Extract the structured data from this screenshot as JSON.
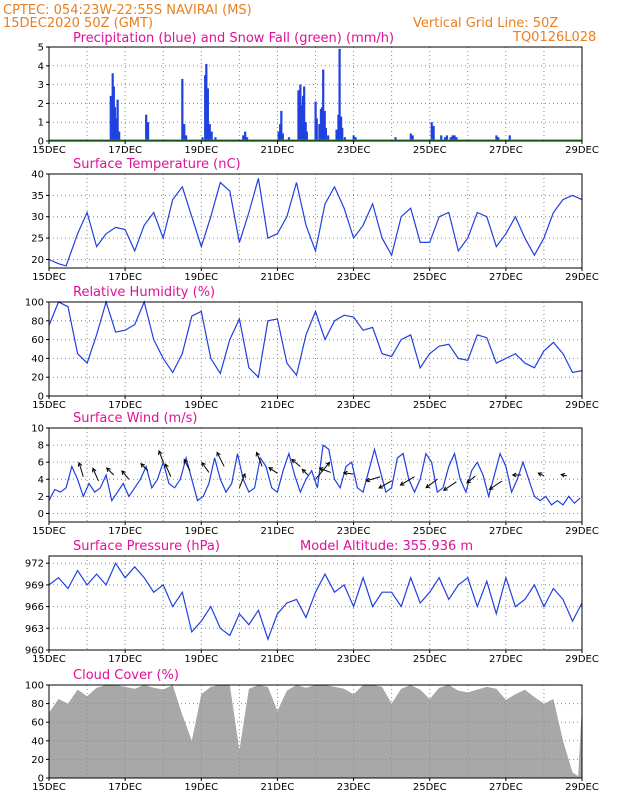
{
  "header": {
    "left_line1": "CPTEC:   054:23W-22:55S   NAVIRAI (MS)",
    "left_line2": "15DEC2020 50Z (GMT)",
    "right_line1": "Vertical Grid Line: 50Z",
    "right_line2": "TQ0126L028"
  },
  "x_ticks": [
    "15DEC",
    "17DEC",
    "19DEC",
    "21DEC",
    "23DEC",
    "25DEC",
    "27DEC",
    "29DEC"
  ],
  "colors": {
    "series": "#2040e0",
    "snow": "#20a020",
    "cloud": "#a8a8a8",
    "title": "#e0109a",
    "header": "#e88020"
  },
  "chart_data": [
    {
      "type": "bar",
      "title": "Precipitation (blue) and Snow Fall (green) (mm/h)",
      "ylim": [
        0,
        5
      ],
      "yticks": [
        0,
        1,
        2,
        3,
        4,
        5
      ],
      "x_unit": "days since 15DEC 00Z",
      "series": [
        {
          "name": "Precipitation",
          "values": [
            [
              1.62,
              2.4
            ],
            [
              1.67,
              3.6
            ],
            [
              1.7,
              2.9
            ],
            [
              1.73,
              1.8
            ],
            [
              1.77,
              1.2
            ],
            [
              1.8,
              2.2
            ],
            [
              1.84,
              0.5
            ],
            [
              2.55,
              1.4
            ],
            [
              2.6,
              1.0
            ],
            [
              3.5,
              3.3
            ],
            [
              3.55,
              0.9
            ],
            [
              3.6,
              0.3
            ],
            [
              4.03,
              0.2
            ],
            [
              4.1,
              3.5
            ],
            [
              4.13,
              4.1
            ],
            [
              4.17,
              2.8
            ],
            [
              4.22,
              0.9
            ],
            [
              4.27,
              0.5
            ],
            [
              4.37,
              0.2
            ],
            [
              5.1,
              0.3
            ],
            [
              5.15,
              0.5
            ],
            [
              5.2,
              0.2
            ],
            [
              6.03,
              0.5
            ],
            [
              6.07,
              0.9
            ],
            [
              6.1,
              1.6
            ],
            [
              6.14,
              0.4
            ],
            [
              6.3,
              0.2
            ],
            [
              6.55,
              2.7
            ],
            [
              6.6,
              3.0
            ],
            [
              6.63,
              1.9
            ],
            [
              6.67,
              2.4
            ],
            [
              6.7,
              2.9
            ],
            [
              6.74,
              1.0
            ],
            [
              6.77,
              0.5
            ],
            [
              7.0,
              2.1
            ],
            [
              7.03,
              1.2
            ],
            [
              7.1,
              0.9
            ],
            [
              7.14,
              1.7
            ],
            [
              7.17,
              1.8
            ],
            [
              7.2,
              3.8
            ],
            [
              7.24,
              1.6
            ],
            [
              7.27,
              0.7
            ],
            [
              7.33,
              0.3
            ],
            [
              7.55,
              0.6
            ],
            [
              7.6,
              1.4
            ],
            [
              7.63,
              4.9
            ],
            [
              7.67,
              1.3
            ],
            [
              7.7,
              0.7
            ],
            [
              7.77,
              0.2
            ],
            [
              8.0,
              0.3
            ],
            [
              8.05,
              0.2
            ],
            [
              9.1,
              0.2
            ],
            [
              9.5,
              0.4
            ],
            [
              9.55,
              0.3
            ],
            [
              10.05,
              1.0
            ],
            [
              10.1,
              0.8
            ],
            [
              10.3,
              0.3
            ],
            [
              10.4,
              0.2
            ],
            [
              10.45,
              0.3
            ],
            [
              10.55,
              0.2
            ],
            [
              10.6,
              0.3
            ],
            [
              10.65,
              0.3
            ],
            [
              10.7,
              0.2
            ],
            [
              11.75,
              0.3
            ],
            [
              11.8,
              0.2
            ],
            [
              12.1,
              0.3
            ]
          ]
        },
        {
          "name": "Snow Fall",
          "values": []
        }
      ]
    },
    {
      "type": "line",
      "title": "Surface Temperature (nC)",
      "ylim": [
        18,
        40
      ],
      "yticks": [
        20,
        25,
        30,
        35,
        40
      ],
      "x": [
        0,
        0.25,
        0.45,
        0.75,
        1.0,
        1.25,
        1.5,
        1.75,
        2.0,
        2.25,
        2.5,
        2.75,
        3.0,
        3.25,
        3.5,
        3.75,
        4.0,
        4.25,
        4.5,
        4.75,
        5.0,
        5.25,
        5.5,
        5.75,
        6.0,
        6.25,
        6.5,
        6.75,
        7.0,
        7.25,
        7.5,
        7.75,
        8.0,
        8.25,
        8.5,
        8.75,
        9.0,
        9.25,
        9.5,
        9.75,
        10.0,
        10.25,
        10.5,
        10.75,
        11.0,
        11.25,
        11.5,
        11.75,
        12.0,
        12.25,
        12.5,
        12.75,
        13.0,
        13.25,
        13.5,
        13.75,
        14.0
      ],
      "values": [
        20,
        19,
        18.5,
        26,
        31,
        23,
        26,
        27.5,
        27,
        22,
        28,
        31,
        25,
        34,
        37,
        30,
        23,
        30,
        38,
        36,
        24,
        31,
        39,
        25,
        26,
        30,
        38,
        28,
        22,
        33,
        37,
        32,
        25,
        28,
        33,
        25,
        21,
        30,
        32,
        24,
        24,
        30,
        31,
        22,
        25,
        31,
        30,
        23,
        26,
        30,
        25,
        21,
        25,
        31,
        34,
        35,
        34
      ]
    },
    {
      "type": "line",
      "title": "Relative Humidity (%)",
      "ylim": [
        0,
        100
      ],
      "yticks": [
        0,
        20,
        40,
        60,
        80,
        100
      ],
      "x": [
        0,
        0.25,
        0.5,
        0.75,
        1.0,
        1.25,
        1.5,
        1.75,
        2.0,
        2.25,
        2.5,
        2.75,
        3.0,
        3.25,
        3.5,
        3.75,
        4.0,
        4.25,
        4.5,
        4.75,
        5.0,
        5.25,
        5.5,
        5.75,
        6.0,
        6.25,
        6.5,
        6.75,
        7.0,
        7.25,
        7.5,
        7.75,
        8.0,
        8.25,
        8.5,
        8.75,
        9.0,
        9.25,
        9.5,
        9.75,
        10.0,
        10.25,
        10.5,
        10.75,
        11.0,
        11.25,
        11.5,
        11.75,
        12.0,
        12.25,
        12.5,
        12.75,
        13.0,
        13.25,
        13.5,
        13.75,
        14.0
      ],
      "values": [
        75,
        100,
        95,
        45,
        35,
        65,
        100,
        68,
        70,
        76,
        100,
        60,
        40,
        25,
        45,
        85,
        90,
        40,
        24,
        60,
        82,
        30,
        20,
        80,
        82,
        35,
        22,
        65,
        90,
        60,
        80,
        86,
        84,
        70,
        73,
        45,
        42,
        60,
        65,
        30,
        45,
        53,
        55,
        40,
        38,
        65,
        62,
        35,
        40,
        45,
        35,
        30,
        48,
        57,
        45,
        25,
        27
      ]
    },
    {
      "type": "line",
      "title": "Surface Wind (m/s)",
      "ylim": [
        -1,
        10
      ],
      "yticks": [
        0,
        2,
        4,
        6,
        8,
        10
      ],
      "x": [
        0,
        0.15,
        0.3,
        0.45,
        0.6,
        0.75,
        0.9,
        1.05,
        1.2,
        1.35,
        1.5,
        1.65,
        1.8,
        1.95,
        2.1,
        2.25,
        2.4,
        2.55,
        2.7,
        2.85,
        3.0,
        3.15,
        3.3,
        3.45,
        3.6,
        3.75,
        3.9,
        4.05,
        4.2,
        4.35,
        4.5,
        4.65,
        4.8,
        4.95,
        5.1,
        5.25,
        5.4,
        5.55,
        5.7,
        5.85,
        6.0,
        6.15,
        6.3,
        6.45,
        6.6,
        6.75,
        6.9,
        7.05,
        7.2,
        7.35,
        7.5,
        7.65,
        7.8,
        7.95,
        8.1,
        8.25,
        8.4,
        8.55,
        8.7,
        8.85,
        9.0,
        9.15,
        9.3,
        9.45,
        9.6,
        9.75,
        9.9,
        10.05,
        10.2,
        10.35,
        10.5,
        10.65,
        10.8,
        10.95,
        11.1,
        11.25,
        11.4,
        11.55,
        11.7,
        11.85,
        12.0,
        12.15,
        12.3,
        12.45,
        12.6,
        12.75,
        12.9,
        13.05,
        13.2,
        13.35,
        13.5,
        13.65,
        13.8,
        13.95
      ],
      "values": [
        1.5,
        2.8,
        2.5,
        3.0,
        5.5,
        4.0,
        2.0,
        3.5,
        2.5,
        3.0,
        4.5,
        1.5,
        2.5,
        3.5,
        2.0,
        3.0,
        4.0,
        5.5,
        3.0,
        4.0,
        6.0,
        3.5,
        3.0,
        4.0,
        6.5,
        4.0,
        1.5,
        2.0,
        3.5,
        6.5,
        4.0,
        2.5,
        3.5,
        7.0,
        4.0,
        2.5,
        3.0,
        6.5,
        5.5,
        3.0,
        2.5,
        5.0,
        7.0,
        4.5,
        2.5,
        4.0,
        5.0,
        3.0,
        8.0,
        7.5,
        4.0,
        3.0,
        5.5,
        6.0,
        3.0,
        2.5,
        5.0,
        7.5,
        5.0,
        2.5,
        3.0,
        6.5,
        7.0,
        4.0,
        2.5,
        4.0,
        7.0,
        6.0,
        2.5,
        3.0,
        5.5,
        7.0,
        4.0,
        2.5,
        5.0,
        6.0,
        4.5,
        2.0,
        4.5,
        7.0,
        5.5,
        2.5,
        4.0,
        6.0,
        4.0,
        2.0,
        1.5,
        2.0,
        1.0,
        1.5,
        1.0,
        2.0,
        1.2,
        1.8
      ],
      "arrows": [
        {
          "x": 0.9,
          "y": 4.3,
          "dx": -0.3,
          "dy": 1.0
        },
        {
          "x": 1.3,
          "y": 3.8,
          "dx": -0.4,
          "dy": 0.9
        },
        {
          "x": 1.7,
          "y": 4.5,
          "dx": -0.5,
          "dy": 0.5
        },
        {
          "x": 2.1,
          "y": 4.0,
          "dx": -0.5,
          "dy": 0.6
        },
        {
          "x": 2.6,
          "y": 5.0,
          "dx": -0.5,
          "dy": 0.5
        },
        {
          "x": 3.0,
          "y": 6.0,
          "dx": -0.3,
          "dy": 0.8
        },
        {
          "x": 3.2,
          "y": 4.3,
          "dx": -0.4,
          "dy": 0.9
        },
        {
          "x": 3.7,
          "y": 5.0,
          "dx": -0.4,
          "dy": 0.8
        },
        {
          "x": 4.2,
          "y": 4.8,
          "dx": -0.5,
          "dy": 0.7
        },
        {
          "x": 4.6,
          "y": 5.5,
          "dx": -0.5,
          "dy": 1.0
        },
        {
          "x": 5.0,
          "y": 3.0,
          "dx": 0.4,
          "dy": 1.0
        },
        {
          "x": 5.6,
          "y": 5.5,
          "dx": -0.4,
          "dy": 1.0
        },
        {
          "x": 6.0,
          "y": 4.7,
          "dx": -0.6,
          "dy": 0.4
        },
        {
          "x": 6.6,
          "y": 5.5,
          "dx": -0.6,
          "dy": 0.5
        },
        {
          "x": 6.8,
          "y": 4.5,
          "dx": -0.4,
          "dy": 0.4
        },
        {
          "x": 7.0,
          "y": 4.0,
          "dx": 1.0,
          "dy": 1.2
        },
        {
          "x": 7.4,
          "y": 4.8,
          "dx": -0.8,
          "dy": 0.3
        },
        {
          "x": 8.0,
          "y": 4.6,
          "dx": -0.7,
          "dy": 0.1
        },
        {
          "x": 8.7,
          "y": 4.3,
          "dx": -1.0,
          "dy": -0.3
        },
        {
          "x": 9.0,
          "y": 3.8,
          "dx": -0.9,
          "dy": -0.5
        },
        {
          "x": 9.6,
          "y": 4.3,
          "dx": -1.0,
          "dy": -0.6
        },
        {
          "x": 10.2,
          "y": 4.0,
          "dx": -0.8,
          "dy": -0.6
        },
        {
          "x": 10.7,
          "y": 3.7,
          "dx": -0.9,
          "dy": -0.6
        },
        {
          "x": 11.2,
          "y": 4.4,
          "dx": -0.6,
          "dy": -0.5
        },
        {
          "x": 11.9,
          "y": 3.8,
          "dx": -0.9,
          "dy": -0.6
        },
        {
          "x": 12.4,
          "y": 4.5,
          "dx": -0.6,
          "dy": 0.0
        },
        {
          "x": 13.0,
          "y": 4.4,
          "dx": -0.4,
          "dy": 0.2
        },
        {
          "x": 13.6,
          "y": 4.4,
          "dx": -0.4,
          "dy": 0.1
        }
      ]
    },
    {
      "type": "line",
      "title": "Surface Pressure (hPa)",
      "annotation": "Model Altitude: 355.936  m",
      "ylim": [
        960,
        973
      ],
      "yticks": [
        960,
        963,
        966,
        969,
        972
      ],
      "x": [
        0,
        0.25,
        0.5,
        0.75,
        1.0,
        1.25,
        1.5,
        1.75,
        2.0,
        2.25,
        2.5,
        2.75,
        3.0,
        3.25,
        3.5,
        3.75,
        4.0,
        4.25,
        4.5,
        4.75,
        5.0,
        5.25,
        5.5,
        5.75,
        6.0,
        6.25,
        6.5,
        6.75,
        7.0,
        7.25,
        7.5,
        7.75,
        8.0,
        8.25,
        8.5,
        8.75,
        9.0,
        9.25,
        9.5,
        9.75,
        10.0,
        10.25,
        10.5,
        10.75,
        11.0,
        11.25,
        11.5,
        11.75,
        12.0,
        12.25,
        12.5,
        12.75,
        13.0,
        13.25,
        13.5,
        13.75,
        14.0
      ],
      "values": [
        969,
        970,
        968.5,
        971,
        969,
        970.5,
        969,
        972,
        970,
        971.5,
        970,
        968,
        969,
        966,
        968,
        962.5,
        964,
        966,
        963,
        962,
        965,
        963.5,
        965.5,
        961.5,
        965,
        966.5,
        967,
        964.5,
        968,
        970.5,
        968,
        969,
        966,
        970,
        966,
        968,
        968,
        966,
        970,
        966.5,
        968,
        970,
        967,
        969,
        970,
        966,
        969.5,
        965,
        970,
        966,
        967,
        969,
        966,
        968.5,
        967,
        964,
        966.5
      ]
    },
    {
      "type": "area",
      "title": "Cloud Cover (%)",
      "ylim": [
        0,
        100
      ],
      "yticks": [
        0,
        20,
        40,
        60,
        80,
        100
      ],
      "x": [
        0,
        0.25,
        0.5,
        0.75,
        1.0,
        1.25,
        1.5,
        1.75,
        2.0,
        2.25,
        2.5,
        2.75,
        3.0,
        3.25,
        3.5,
        3.75,
        4.0,
        4.25,
        4.5,
        4.75,
        5.0,
        5.25,
        5.5,
        5.75,
        6.0,
        6.25,
        6.5,
        6.75,
        7.0,
        7.25,
        7.5,
        7.75,
        8.0,
        8.25,
        8.5,
        8.75,
        9.0,
        9.25,
        9.5,
        9.75,
        10.0,
        10.25,
        10.5,
        10.75,
        11.0,
        11.25,
        11.5,
        11.75,
        12.0,
        12.25,
        12.5,
        12.75,
        13.0,
        13.25,
        13.5,
        13.75,
        13.9,
        14.0
      ],
      "values": [
        70,
        85,
        80,
        95,
        88,
        97,
        100,
        100,
        98,
        96,
        100,
        97,
        95,
        100,
        68,
        40,
        90,
        98,
        100,
        100,
        30,
        96,
        100,
        98,
        72,
        94,
        100,
        97,
        100,
        100,
        98,
        96,
        90,
        100,
        100,
        98,
        80,
        96,
        100,
        95,
        85,
        97,
        100,
        94,
        92,
        95,
        98,
        96,
        84,
        90,
        95,
        87,
        80,
        85,
        40,
        6,
        2,
        80
      ]
    }
  ]
}
